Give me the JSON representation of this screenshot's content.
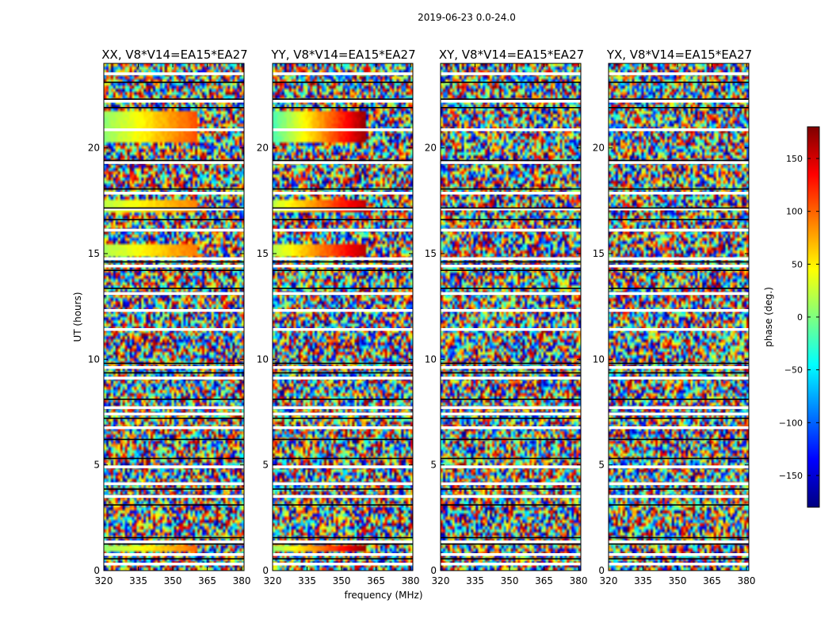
{
  "figure": {
    "suptitle": "2019-06-23 0.0-24.0",
    "xlabel": "frequency (MHz)",
    "ylabel": "UT (hours)"
  },
  "colorbar": {
    "label": "phase (deg.)",
    "range": [
      -180,
      180
    ],
    "ticks": [
      150,
      100,
      50,
      0,
      -50,
      -100,
      -150
    ],
    "tick_labels": [
      "150",
      "100",
      "50",
      "0",
      "−50",
      "−100",
      "−150"
    ],
    "colormap": "jet",
    "colors": [
      "#00007f",
      "#0000ff",
      "#007fff",
      "#00ffff",
      "#7fff7f",
      "#ffff00",
      "#ff7f00",
      "#ff0000",
      "#7f0000"
    ]
  },
  "chart_data": [
    {
      "type": "heatmap",
      "title": "XX, V8*V14=EA15*EA27",
      "xlabel": "",
      "ylabel": "UT (hours)",
      "xlim": [
        320,
        381
      ],
      "ylim": [
        0,
        24
      ],
      "xticks": [
        320,
        335,
        350,
        365,
        380
      ],
      "yticks": [
        0,
        5,
        10,
        15,
        20
      ],
      "value": "phase (deg.)",
      "coherent_bands": [
        {
          "ut": [
            20.2,
            21.8
          ],
          "freq": [
            320,
            361
          ],
          "phase_deg": [
            5,
            110
          ]
        },
        {
          "ut": [
            0.9,
            1.2
          ],
          "freq": [
            320,
            361
          ],
          "phase_deg": [
            5,
            100
          ]
        },
        {
          "ut": [
            14.8,
            15.4
          ],
          "freq": [
            320,
            361
          ],
          "phase_deg": [
            15,
            95
          ]
        },
        {
          "ut": [
            16.9,
            17.6
          ],
          "freq": [
            320,
            361
          ],
          "phase_deg": [
            20,
            90
          ]
        }
      ]
    },
    {
      "type": "heatmap",
      "title": "YY, V8*V14=EA15*EA27",
      "xlabel": "frequency (MHz)",
      "ylabel": "",
      "xlim": [
        320,
        381
      ],
      "ylim": [
        0,
        24
      ],
      "xticks": [
        320,
        335,
        350,
        365,
        380
      ],
      "yticks": [
        0,
        5,
        10,
        15,
        20
      ],
      "value": "phase (deg.)",
      "coherent_bands": [
        {
          "ut": [
            20.2,
            21.8
          ],
          "freq": [
            320,
            361
          ],
          "phase_deg": [
            -20,
            175
          ]
        },
        {
          "ut": [
            0.9,
            1.2
          ],
          "freq": [
            320,
            361
          ],
          "phase_deg": [
            5,
            175
          ]
        },
        {
          "ut": [
            14.8,
            15.4
          ],
          "freq": [
            320,
            361
          ],
          "phase_deg": [
            15,
            165
          ]
        },
        {
          "ut": [
            16.9,
            17.6
          ],
          "freq": [
            320,
            361
          ],
          "phase_deg": [
            20,
            160
          ]
        }
      ]
    },
    {
      "type": "heatmap",
      "title": "XY, V8*V14=EA15*EA27",
      "xlabel": "",
      "ylabel": "",
      "xlim": [
        320,
        381
      ],
      "ylim": [
        0,
        24
      ],
      "xticks": [
        320,
        335,
        350,
        365,
        380
      ],
      "yticks": [
        0,
        5,
        10,
        15,
        20
      ],
      "value": "phase (deg.)",
      "coherent_bands": []
    },
    {
      "type": "heatmap",
      "title": "YX, V8*V14=EA15*EA27",
      "xlabel": "",
      "ylabel": "",
      "xlim": [
        320,
        381
      ],
      "ylim": [
        0,
        24
      ],
      "xticks": [
        320,
        335,
        350,
        365,
        380
      ],
      "yticks": [
        0,
        5,
        10,
        15,
        20
      ],
      "value": "phase (deg.)",
      "coherent_bands": []
    }
  ]
}
